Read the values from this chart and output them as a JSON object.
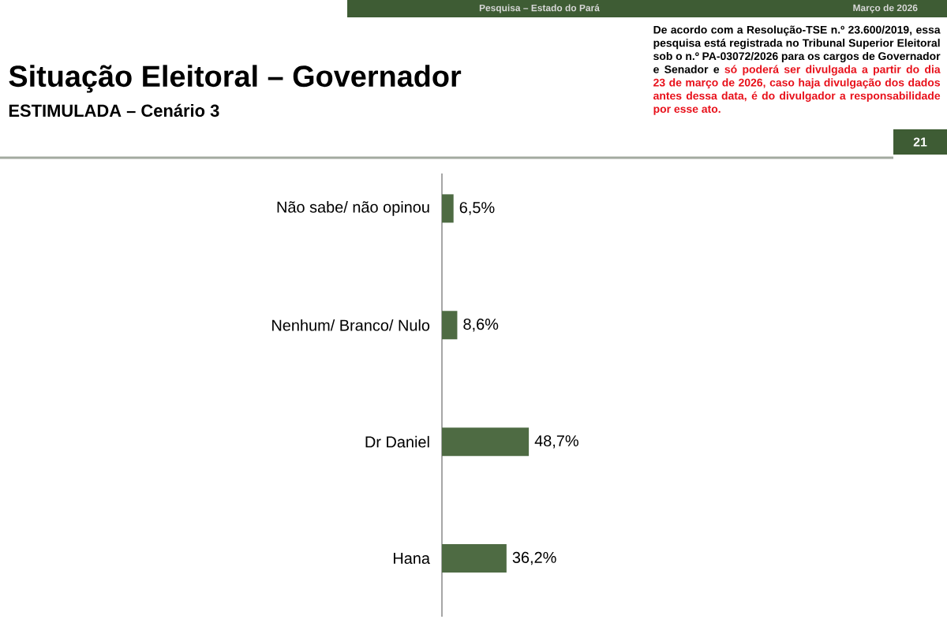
{
  "chart_data": {
    "type": "bar",
    "orientation": "horizontal",
    "title": "Situação Eleitoral – Governador",
    "subtitle": "ESTIMULADA – Cenário 3",
    "categories": [
      "Não sabe/ não opinou",
      "Nenhum/ Branco/ Nulo",
      "Dr Daniel",
      "Hana"
    ],
    "values": [
      6.5,
      8.6,
      48.7,
      36.2
    ],
    "value_labels": [
      "6,5%",
      "8,6%",
      "48,7%",
      "36,2%"
    ],
    "color": "#4e6b43",
    "annotations": [
      "De acordo com a Resolução-TSE n.º 23.600/2019, essa pesquisa está registrada no Tribunal Superior Eleitoral sob o n.º PA-03072/2026 para os cargos de Governador e Senador e",
      "só poderá ser divulgada a partir do dia 23 de março de 2026, caso haja divulgação dos dados antes dessa data, é do divulgador a responsabilidade por esse ato.",
      "Pesquisa – Estado do Pará",
      "Março de 2026",
      "21"
    ]
  }
}
